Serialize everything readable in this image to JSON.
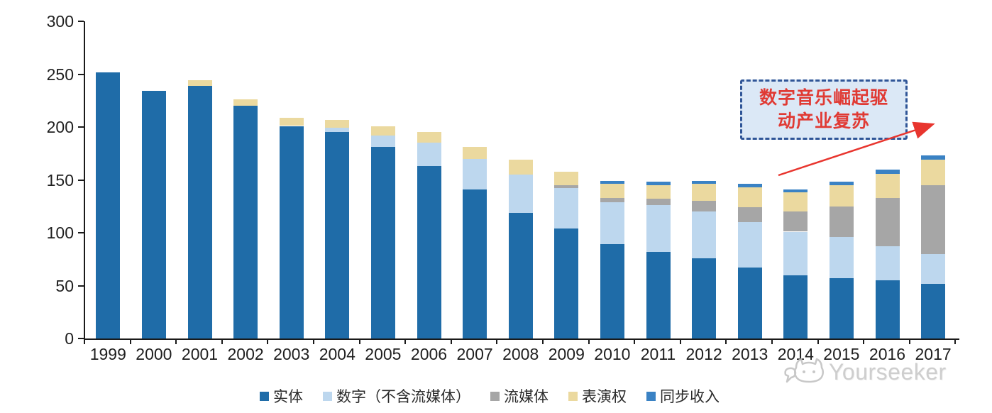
{
  "chart_data": {
    "type": "bar",
    "stacked": true,
    "title": "",
    "xlabel": "",
    "ylabel": "",
    "categories": [
      "1999",
      "2000",
      "2001",
      "2002",
      "2003",
      "2004",
      "2005",
      "2006",
      "2007",
      "2008",
      "2009",
      "2010",
      "2011",
      "2012",
      "2013",
      "2014",
      "2015",
      "2016",
      "2017"
    ],
    "series": [
      {
        "key": "physical",
        "name": "实体",
        "color": "#1F6CA8",
        "values": [
          252,
          234,
          239,
          220,
          201,
          195,
          181,
          163,
          141,
          119,
          104,
          89,
          82,
          76,
          67,
          60,
          57,
          55,
          52
        ]
      },
      {
        "key": "digital-excl-streaming",
        "name": "数字（不含流媒体）",
        "color": "#BDD7EE",
        "values": [
          0,
          0,
          0,
          0,
          0,
          4,
          11,
          22,
          29,
          36,
          38,
          40,
          44,
          44,
          43,
          41,
          39,
          32,
          28
        ]
      },
      {
        "key": "streaming",
        "name": "流媒体",
        "color": "#A6A6A6",
        "values": [
          0,
          0,
          0,
          0,
          0,
          0,
          0,
          0,
          0,
          0,
          3,
          4,
          6,
          10,
          14,
          19,
          29,
          46,
          65
        ]
      },
      {
        "key": "performance-rights",
        "name": "表演权",
        "color": "#EBD99F",
        "values": [
          0,
          0,
          5,
          6,
          8,
          8,
          9,
          10,
          11,
          14,
          13,
          13,
          13,
          16,
          19,
          18,
          20,
          23,
          24
        ]
      },
      {
        "key": "sync-revenue",
        "name": "同步收入",
        "color": "#3A82C4",
        "values": [
          0,
          0,
          0,
          0,
          0,
          0,
          0,
          0,
          0,
          0,
          0,
          3,
          3,
          3,
          3,
          3,
          3,
          4,
          4
        ]
      }
    ],
    "totals": [
      252,
      234,
      244,
      226,
      209,
      207,
      201,
      195,
      181,
      169,
      158,
      149,
      148,
      149,
      146,
      141,
      148,
      160,
      173
    ],
    "ylim": [
      0,
      300
    ],
    "y_ticks": [
      0,
      50,
      100,
      150,
      200,
      250,
      300
    ],
    "grid": false,
    "legend_position": "bottom"
  },
  "annotation": {
    "line1": "数字音乐崛起驱",
    "line2": "动产业复苏",
    "full_text": "数字音乐崛起驱动产业复苏",
    "text_color": "#E03A34",
    "border_color": "#2F5597",
    "fill_color": "#DBE8F6",
    "arrow_color": "#E8352E"
  },
  "watermark": {
    "label": "Yourseeker",
    "icon": "cat-logo-icon",
    "color": "#c6c6c6"
  }
}
